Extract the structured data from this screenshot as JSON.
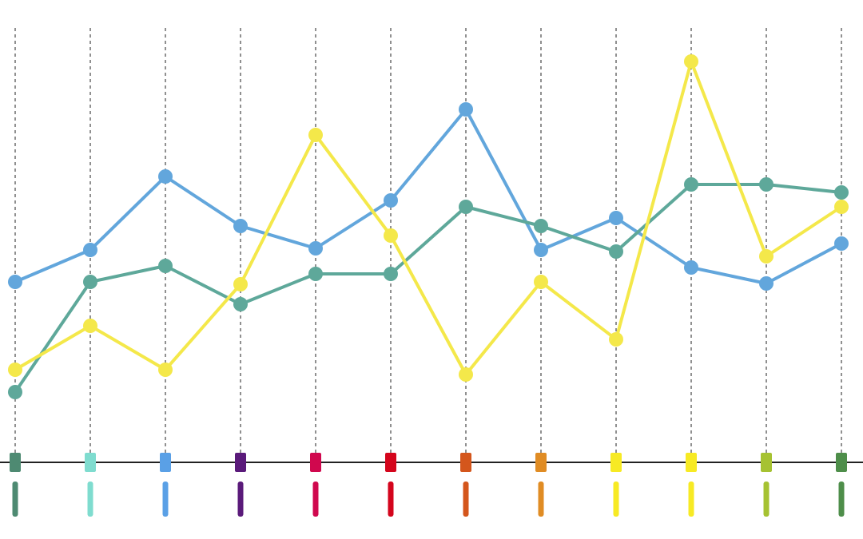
{
  "chart_data": {
    "type": "line",
    "categories": [
      null,
      null,
      null,
      null,
      null,
      null,
      null,
      null,
      null,
      null,
      null,
      null
    ],
    "category_colors": [
      "#4e8a72",
      "#7fdccf",
      "#5aa0e6",
      "#5a1a7a",
      "#d0084e",
      "#d4051c",
      "#d4561c",
      "#e08c24",
      "#f7ea24",
      "#f7ea24",
      "#a6c232",
      "#4e8e4a"
    ],
    "series": [
      {
        "color": "#62a6dc",
        "values": [
          226,
          266,
          358,
          296,
          268,
          328,
          442,
          266,
          306,
          244,
          224,
          274
        ]
      },
      {
        "color": "#5ea89a",
        "values": [
          88,
          226,
          246,
          198,
          236,
          236,
          320,
          296,
          264,
          348,
          348,
          338
        ]
      },
      {
        "color": "#f4e84a",
        "values": [
          116,
          171,
          116,
          223,
          410,
          284,
          110,
          226,
          154,
          502,
          258,
          320
        ]
      }
    ],
    "ylim": [
      0,
      550
    ],
    "grid": true
  }
}
